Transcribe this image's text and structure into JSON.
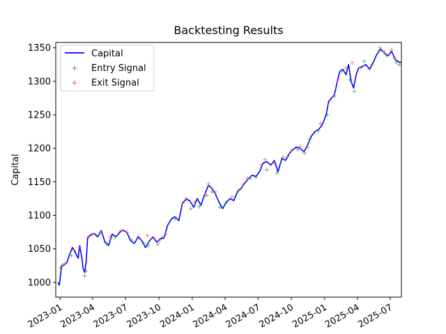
{
  "chart_data": {
    "type": "line",
    "title": "Backtesting Results",
    "xlabel": "",
    "ylabel": "Capital",
    "x_axis_type": "date",
    "xlim": [
      "2022-12-20",
      "2025-08-01"
    ],
    "ylim": [
      978,
      1358
    ],
    "x_ticks": [
      "2023-01-01",
      "2023-04-01",
      "2023-07-01",
      "2023-10-01",
      "2024-01-01",
      "2024-04-01",
      "2024-07-01",
      "2024-10-01",
      "2025-01-01",
      "2025-04-01",
      "2025-07-01"
    ],
    "x_tick_labels": [
      "2023-01",
      "2023-04",
      "2023-07",
      "2023-10",
      "2024-01",
      "2024-04",
      "2024-07",
      "2024-10",
      "2025-01",
      "2025-04",
      "2025-07"
    ],
    "y_ticks": [
      1000,
      1050,
      1100,
      1150,
      1200,
      1250,
      1300,
      1350
    ],
    "y_tick_labels": [
      "1000",
      "1050",
      "1100",
      "1150",
      "1200",
      "1250",
      "1300",
      "1350"
    ],
    "grid": false,
    "legend_position": "top-left",
    "colors": {
      "capital": "#0000ff",
      "entry": "#2ca02c",
      "exit": "#ff4d4d"
    },
    "series": [
      {
        "name": "Capital",
        "marker": "line",
        "points": [
          [
            "2022-12-26",
            1000
          ],
          [
            "2022-12-30",
            996
          ],
          [
            "2023-01-05",
            1024
          ],
          [
            "2023-01-12",
            1026
          ],
          [
            "2023-01-20",
            1030
          ],
          [
            "2023-01-28",
            1043
          ],
          [
            "2023-02-04",
            1052
          ],
          [
            "2023-02-10",
            1047
          ],
          [
            "2023-02-16",
            1040
          ],
          [
            "2023-02-20",
            1036
          ],
          [
            "2023-02-24",
            1055
          ],
          [
            "2023-03-01",
            1040
          ],
          [
            "2023-03-06",
            1020
          ],
          [
            "2023-03-10",
            1015
          ],
          [
            "2023-03-14",
            1030
          ],
          [
            "2023-03-18",
            1066
          ],
          [
            "2023-03-25",
            1070
          ],
          [
            "2023-04-05",
            1073
          ],
          [
            "2023-04-15",
            1068
          ],
          [
            "2023-04-25",
            1077
          ],
          [
            "2023-05-05",
            1060
          ],
          [
            "2023-05-15",
            1055
          ],
          [
            "2023-05-25",
            1072
          ],
          [
            "2023-06-05",
            1068
          ],
          [
            "2023-06-15",
            1075
          ],
          [
            "2023-06-25",
            1078
          ],
          [
            "2023-07-05",
            1074
          ],
          [
            "2023-07-15",
            1062
          ],
          [
            "2023-07-25",
            1058
          ],
          [
            "2023-08-05",
            1068
          ],
          [
            "2023-08-15",
            1062
          ],
          [
            "2023-08-25",
            1052
          ],
          [
            "2023-09-05",
            1062
          ],
          [
            "2023-09-15",
            1068
          ],
          [
            "2023-09-25",
            1060
          ],
          [
            "2023-10-05",
            1065
          ],
          [
            "2023-10-15",
            1066
          ],
          [
            "2023-10-25",
            1085
          ],
          [
            "2023-11-05",
            1095
          ],
          [
            "2023-11-15",
            1098
          ],
          [
            "2023-11-25",
            1092
          ],
          [
            "2023-12-05",
            1118
          ],
          [
            "2023-12-15",
            1124
          ],
          [
            "2023-12-25",
            1122
          ],
          [
            "2024-01-05",
            1112
          ],
          [
            "2024-01-15",
            1125
          ],
          [
            "2024-01-25",
            1115
          ],
          [
            "2024-02-05",
            1132
          ],
          [
            "2024-02-15",
            1145
          ],
          [
            "2024-02-25",
            1140
          ],
          [
            "2024-03-05",
            1132
          ],
          [
            "2024-03-15",
            1120
          ],
          [
            "2024-03-25",
            1110
          ],
          [
            "2024-04-05",
            1120
          ],
          [
            "2024-04-15",
            1125
          ],
          [
            "2024-04-25",
            1122
          ],
          [
            "2024-05-05",
            1135
          ],
          [
            "2024-05-15",
            1140
          ],
          [
            "2024-05-25",
            1148
          ],
          [
            "2024-06-05",
            1155
          ],
          [
            "2024-06-15",
            1160
          ],
          [
            "2024-06-25",
            1158
          ],
          [
            "2024-07-05",
            1165
          ],
          [
            "2024-07-15",
            1178
          ],
          [
            "2024-07-25",
            1180
          ],
          [
            "2024-08-05",
            1175
          ],
          [
            "2024-08-15",
            1182
          ],
          [
            "2024-08-25",
            1165
          ],
          [
            "2024-09-05",
            1185
          ],
          [
            "2024-09-15",
            1182
          ],
          [
            "2024-09-25",
            1192
          ],
          [
            "2024-10-05",
            1198
          ],
          [
            "2024-10-15",
            1202
          ],
          [
            "2024-10-25",
            1200
          ],
          [
            "2024-11-05",
            1195
          ],
          [
            "2024-11-15",
            1205
          ],
          [
            "2024-11-25",
            1218
          ],
          [
            "2024-12-05",
            1225
          ],
          [
            "2024-12-15",
            1228
          ],
          [
            "2024-12-25",
            1235
          ],
          [
            "2025-01-05",
            1250
          ],
          [
            "2025-01-12",
            1270
          ],
          [
            "2025-01-20",
            1275
          ],
          [
            "2025-01-28",
            1280
          ],
          [
            "2025-02-05",
            1300
          ],
          [
            "2025-02-12",
            1315
          ],
          [
            "2025-02-20",
            1318
          ],
          [
            "2025-03-01",
            1310
          ],
          [
            "2025-03-08",
            1325
          ],
          [
            "2025-03-15",
            1300
          ],
          [
            "2025-03-22",
            1290
          ],
          [
            "2025-03-29",
            1310
          ],
          [
            "2025-04-05",
            1320
          ],
          [
            "2025-04-15",
            1322
          ],
          [
            "2025-04-25",
            1325
          ],
          [
            "2025-05-05",
            1318
          ],
          [
            "2025-05-15",
            1328
          ],
          [
            "2025-05-25",
            1340
          ],
          [
            "2025-06-05",
            1348
          ],
          [
            "2025-06-15",
            1342
          ],
          [
            "2025-06-25",
            1338
          ],
          [
            "2025-07-05",
            1345
          ],
          [
            "2025-07-15",
            1332
          ],
          [
            "2025-07-22",
            1330
          ],
          [
            "2025-07-31",
            1328
          ]
        ]
      },
      {
        "name": "Entry Signal",
        "marker": "plus",
        "points": [
          [
            "2023-01-08",
            1026
          ],
          [
            "2023-02-01",
            1040
          ],
          [
            "2023-03-10",
            1010
          ],
          [
            "2023-03-14",
            1017
          ],
          [
            "2023-04-12",
            1070
          ],
          [
            "2023-05-10",
            1058
          ],
          [
            "2023-06-02",
            1068
          ],
          [
            "2023-07-18",
            1063
          ],
          [
            "2023-08-20",
            1058
          ],
          [
            "2023-09-01",
            1055
          ],
          [
            "2023-09-28",
            1057
          ],
          [
            "2023-10-10",
            1067
          ],
          [
            "2023-11-15",
            1095
          ],
          [
            "2023-12-28",
            1110
          ],
          [
            "2024-01-20",
            1113
          ],
          [
            "2024-02-10",
            1130
          ],
          [
            "2024-02-25",
            1135
          ],
          [
            "2024-03-18",
            1112
          ],
          [
            "2024-04-02",
            1118
          ],
          [
            "2024-05-08",
            1138
          ],
          [
            "2024-06-10",
            1155
          ],
          [
            "2024-06-25",
            1157
          ],
          [
            "2024-07-25",
            1168
          ],
          [
            "2024-08-22",
            1163
          ],
          [
            "2024-09-20",
            1187
          ],
          [
            "2024-10-18",
            1198
          ],
          [
            "2024-11-06",
            1193
          ],
          [
            "2024-11-20",
            1213
          ],
          [
            "2024-12-14",
            1226
          ],
          [
            "2025-01-08",
            1250
          ],
          [
            "2025-01-28",
            1278
          ],
          [
            "2025-02-18",
            1315
          ],
          [
            "2025-03-12",
            1302
          ],
          [
            "2025-03-24",
            1285
          ],
          [
            "2025-04-20",
            1330
          ],
          [
            "2025-05-12",
            1325
          ],
          [
            "2025-05-30",
            1345
          ],
          [
            "2025-06-22",
            1338
          ],
          [
            "2025-07-18",
            1328
          ],
          [
            "2025-07-26",
            1325
          ]
        ]
      },
      {
        "name": "Exit Signal",
        "marker": "plus",
        "points": [
          [
            "2023-01-02",
            1022
          ],
          [
            "2023-01-15",
            1028
          ],
          [
            "2023-02-08",
            1048
          ],
          [
            "2023-02-25",
            1052
          ],
          [
            "2023-03-20",
            1068
          ],
          [
            "2023-03-30",
            1072
          ],
          [
            "2023-04-22",
            1075
          ],
          [
            "2023-05-20",
            1068
          ],
          [
            "2023-06-18",
            1077
          ],
          [
            "2023-07-05",
            1075
          ],
          [
            "2023-08-05",
            1068
          ],
          [
            "2023-08-30",
            1070
          ],
          [
            "2023-09-15",
            1066
          ],
          [
            "2023-10-02",
            1062
          ],
          [
            "2023-10-20",
            1072
          ],
          [
            "2023-12-05",
            1118
          ],
          [
            "2023-12-15",
            1125
          ],
          [
            "2024-01-08",
            1120
          ],
          [
            "2024-02-05",
            1130
          ],
          [
            "2024-02-15",
            1147
          ],
          [
            "2024-03-05",
            1135
          ],
          [
            "2024-04-20",
            1128
          ],
          [
            "2024-05-20",
            1146
          ],
          [
            "2024-06-02",
            1155
          ],
          [
            "2024-07-10",
            1175
          ],
          [
            "2024-07-20",
            1183
          ],
          [
            "2024-08-15",
            1178
          ],
          [
            "2024-09-08",
            1187
          ],
          [
            "2024-10-02",
            1197
          ],
          [
            "2024-10-25",
            1203
          ],
          [
            "2024-11-15",
            1202
          ],
          [
            "2024-12-01",
            1222
          ],
          [
            "2024-12-20",
            1237
          ],
          [
            "2025-01-16",
            1272
          ],
          [
            "2025-02-05",
            1302
          ],
          [
            "2025-03-01",
            1320
          ],
          [
            "2025-03-18",
            1328
          ],
          [
            "2025-04-10",
            1320
          ],
          [
            "2025-05-05",
            1318
          ],
          [
            "2025-06-02",
            1350
          ],
          [
            "2025-06-15",
            1344
          ],
          [
            "2025-07-05",
            1347
          ],
          [
            "2025-07-14",
            1334
          ]
        ]
      }
    ]
  }
}
